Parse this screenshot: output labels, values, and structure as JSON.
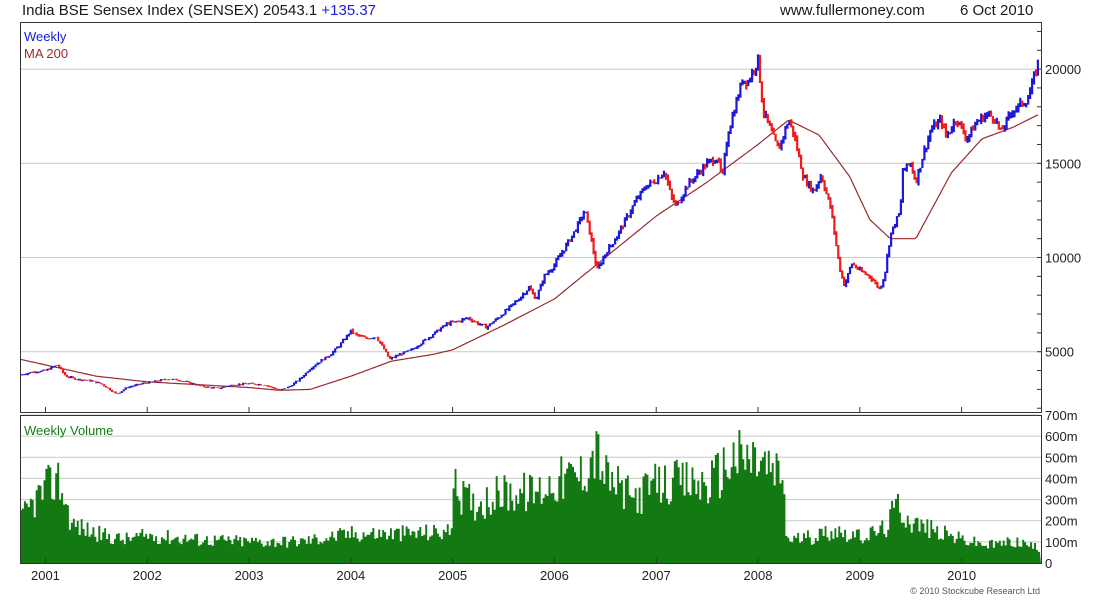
{
  "header": {
    "index_name": "India BSE Sensex Index (SENSEX)",
    "last_value": "20543.1",
    "change": "+135.37",
    "website": "www.fullermoney.com",
    "date": "6 Oct 2010"
  },
  "copyright": "© 2010 Stockcube Research Ltd",
  "colors": {
    "up_bar": "#1a1ad8",
    "down_bar": "#ee1c1c",
    "ma_line": "#9a2a2a",
    "volume": "#137a13",
    "grid": "#c8c8c8",
    "frame": "#333333"
  },
  "chart_data": [
    {
      "type": "line",
      "panel": "price",
      "legend": {
        "weekly": "Weekly",
        "ma": "MA 200"
      },
      "x_tick_labels": [
        "2001",
        "2002",
        "2003",
        "2004",
        "2005",
        "2006",
        "2007",
        "2008",
        "2009",
        "2010"
      ],
      "y_tick_labels": [
        "5000",
        "10000",
        "15000",
        "20000"
      ],
      "ylim": [
        1800,
        22500
      ],
      "grid": true,
      "series": [
        {
          "name": "Weekly",
          "points": [
            [
              2000.75,
              3750
            ],
            [
              2000.85,
              3900
            ],
            [
              2001.0,
              4000
            ],
            [
              2001.12,
              4300
            ],
            [
              2001.2,
              3700
            ],
            [
              2001.3,
              3550
            ],
            [
              2001.45,
              3450
            ],
            [
              2001.55,
              3300
            ],
            [
              2001.7,
              2750
            ],
            [
              2001.8,
              3100
            ],
            [
              2001.95,
              3300
            ],
            [
              2002.1,
              3450
            ],
            [
              2002.2,
              3550
            ],
            [
              2002.3,
              3500
            ],
            [
              2002.45,
              3300
            ],
            [
              2002.55,
              3150
            ],
            [
              2002.7,
              3050
            ],
            [
              2002.85,
              3250
            ],
            [
              2003.0,
              3300
            ],
            [
              2003.15,
              3250
            ],
            [
              2003.25,
              3050
            ],
            [
              2003.3,
              2950
            ],
            [
              2003.4,
              3150
            ],
            [
              2003.5,
              3550
            ],
            [
              2003.6,
              4100
            ],
            [
              2003.7,
              4500
            ],
            [
              2003.8,
              4850
            ],
            [
              2003.9,
              5400
            ],
            [
              2004.0,
              6100
            ],
            [
              2004.05,
              5900
            ],
            [
              2004.15,
              5700
            ],
            [
              2004.25,
              5800
            ],
            [
              2004.33,
              5100
            ],
            [
              2004.38,
              4600
            ],
            [
              2004.5,
              4900
            ],
            [
              2004.6,
              5100
            ],
            [
              2004.75,
              5700
            ],
            [
              2004.85,
              6100
            ],
            [
              2004.95,
              6500
            ],
            [
              2005.05,
              6600
            ],
            [
              2005.15,
              6800
            ],
            [
              2005.25,
              6500
            ],
            [
              2005.33,
              6300
            ],
            [
              2005.45,
              6800
            ],
            [
              2005.55,
              7300
            ],
            [
              2005.65,
              7800
            ],
            [
              2005.75,
              8400
            ],
            [
              2005.82,
              7800
            ],
            [
              2005.9,
              9000
            ],
            [
              2006.0,
              9600
            ],
            [
              2006.1,
              10500
            ],
            [
              2006.2,
              11400
            ],
            [
              2006.3,
              12500
            ],
            [
              2006.36,
              11000
            ],
            [
              2006.42,
              9300
            ],
            [
              2006.5,
              10200
            ],
            [
              2006.6,
              11000
            ],
            [
              2006.7,
              12000
            ],
            [
              2006.8,
              13000
            ],
            [
              2006.9,
              13800
            ],
            [
              2007.0,
              14100
            ],
            [
              2007.08,
              14600
            ],
            [
              2007.15,
              13200
            ],
            [
              2007.2,
              12700
            ],
            [
              2007.3,
              13800
            ],
            [
              2007.4,
              14400
            ],
            [
              2007.5,
              15000
            ],
            [
              2007.6,
              15300
            ],
            [
              2007.65,
              14200
            ],
            [
              2007.7,
              16500
            ],
            [
              2007.8,
              18500
            ],
            [
              2007.85,
              19500
            ],
            [
              2007.9,
              19300
            ],
            [
              2008.0,
              20500
            ],
            [
              2008.05,
              17800
            ],
            [
              2008.12,
              16800
            ],
            [
              2008.2,
              15700
            ],
            [
              2008.3,
              17300
            ],
            [
              2008.35,
              16600
            ],
            [
              2008.45,
              14200
            ],
            [
              2008.55,
              13500
            ],
            [
              2008.62,
              14400
            ],
            [
              2008.72,
              12500
            ],
            [
              2008.8,
              9500
            ],
            [
              2008.85,
              8500
            ],
            [
              2008.92,
              9700
            ],
            [
              2009.0,
              9300
            ],
            [
              2009.1,
              9000
            ],
            [
              2009.2,
              8300
            ],
            [
              2009.25,
              9300
            ],
            [
              2009.3,
              11200
            ],
            [
              2009.4,
              12500
            ],
            [
              2009.42,
              14600
            ],
            [
              2009.5,
              15000
            ],
            [
              2009.55,
              14000
            ],
            [
              2009.62,
              15400
            ],
            [
              2009.7,
              16800
            ],
            [
              2009.8,
              17300
            ],
            [
              2009.85,
              16400
            ],
            [
              2009.95,
              17400
            ],
            [
              2010.05,
              16300
            ],
            [
              2010.15,
              17200
            ],
            [
              2010.25,
              17600
            ],
            [
              2010.33,
              17400
            ],
            [
              2010.38,
              16600
            ],
            [
              2010.5,
              17800
            ],
            [
              2010.6,
              18200
            ],
            [
              2010.65,
              18400
            ],
            [
              2010.7,
              19300
            ],
            [
              2010.76,
              20500
            ]
          ]
        },
        {
          "name": "MA 200",
          "points": [
            [
              2000.75,
              4600
            ],
            [
              2001.0,
              4300
            ],
            [
              2001.5,
              3700
            ],
            [
              2002.0,
              3400
            ],
            [
              2002.5,
              3250
            ],
            [
              2003.0,
              3100
            ],
            [
              2003.3,
              2950
            ],
            [
              2003.6,
              3000
            ],
            [
              2004.0,
              3700
            ],
            [
              2004.4,
              4500
            ],
            [
              2004.8,
              4850
            ],
            [
              2005.0,
              5100
            ],
            [
              2005.5,
              6400
            ],
            [
              2006.0,
              7800
            ],
            [
              2006.5,
              10000
            ],
            [
              2007.0,
              12200
            ],
            [
              2007.5,
              14000
            ],
            [
              2008.0,
              16000
            ],
            [
              2008.3,
              17300
            ],
            [
              2008.6,
              16500
            ],
            [
              2008.9,
              14300
            ],
            [
              2009.1,
              12000
            ],
            [
              2009.3,
              11000
            ],
            [
              2009.55,
              11000
            ],
            [
              2009.9,
              14500
            ],
            [
              2010.2,
              16300
            ],
            [
              2010.5,
              16900
            ],
            [
              2010.76,
              17600
            ]
          ]
        }
      ]
    },
    {
      "type": "bar",
      "panel": "volume",
      "legend": "Weekly Volume",
      "y_tick_labels": [
        "0",
        "100m",
        "200m",
        "300m",
        "400m",
        "500m",
        "600m",
        "700m"
      ],
      "ylim": [
        0,
        700
      ],
      "grid": true,
      "points": [
        [
          2000.75,
          220
        ],
        [
          2000.9,
          330
        ],
        [
          2001.0,
          380
        ],
        [
          2001.12,
          430
        ],
        [
          2001.25,
          200
        ],
        [
          2001.5,
          150
        ],
        [
          2001.75,
          120
        ],
        [
          2002.0,
          140
        ],
        [
          2002.5,
          120
        ],
        [
          2003.0,
          110
        ],
        [
          2003.5,
          110
        ],
        [
          2004.0,
          150
        ],
        [
          2004.5,
          150
        ],
        [
          2004.97,
          160
        ],
        [
          2005.0,
          380
        ],
        [
          2005.2,
          300
        ],
        [
          2005.5,
          360
        ],
        [
          2005.8,
          360
        ],
        [
          2006.0,
          420
        ],
        [
          2006.25,
          450
        ],
        [
          2006.4,
          580
        ],
        [
          2006.5,
          440
        ],
        [
          2006.75,
          330
        ],
        [
          2007.0,
          400
        ],
        [
          2007.25,
          410
        ],
        [
          2007.5,
          400
        ],
        [
          2007.75,
          540
        ],
        [
          2008.0,
          520
        ],
        [
          2008.25,
          420
        ],
        [
          2008.27,
          120
        ],
        [
          2008.5,
          130
        ],
        [
          2008.75,
          170
        ],
        [
          2009.0,
          130
        ],
        [
          2009.25,
          180
        ],
        [
          2009.35,
          300
        ],
        [
          2009.5,
          210
        ],
        [
          2009.75,
          160
        ],
        [
          2010.0,
          120
        ],
        [
          2010.25,
          90
        ],
        [
          2010.5,
          110
        ],
        [
          2010.6,
          100
        ],
        [
          2010.76,
          70
        ]
      ]
    }
  ]
}
